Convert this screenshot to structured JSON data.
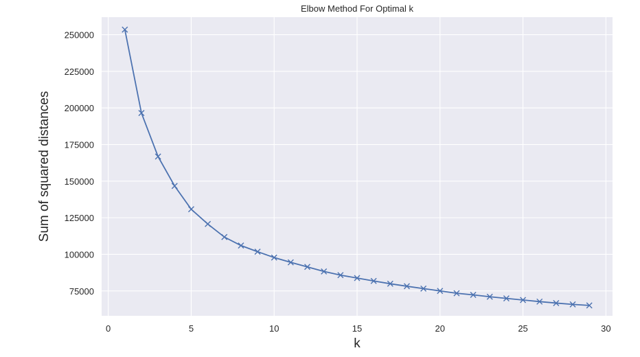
{
  "chart_data": {
    "type": "line",
    "title": "Elbow Method For Optimal k",
    "xlabel": "k",
    "ylabel": "Sum of squared distances",
    "xlim": [
      -0.4,
      30.4
    ],
    "ylim": [
      58000,
      262000
    ],
    "xticks": [
      0,
      5,
      10,
      15,
      20,
      25,
      30
    ],
    "yticks": [
      75000,
      100000,
      125000,
      150000,
      175000,
      200000,
      225000,
      250000
    ],
    "grid": true,
    "marker": "x",
    "colors": {
      "background": "#eaeaf2",
      "grid": "#ffffff",
      "line": "#4c72b0"
    },
    "series": [
      {
        "x": [
          1,
          2,
          3,
          4,
          5,
          6,
          7,
          8,
          9,
          10,
          11,
          12,
          13,
          14,
          15,
          16,
          17,
          18,
          19,
          20,
          21,
          22,
          23,
          24,
          25,
          26,
          27,
          28,
          29
        ],
        "values": [
          253500,
          196500,
          166800,
          146700,
          130800,
          120700,
          111800,
          106000,
          101800,
          97800,
          94500,
          91400,
          88300,
          85800,
          83800,
          81800,
          79900,
          78200,
          76600,
          75000,
          73400,
          72300,
          71000,
          69900,
          68800,
          67700,
          66700,
          65800,
          65100
        ]
      }
    ]
  }
}
